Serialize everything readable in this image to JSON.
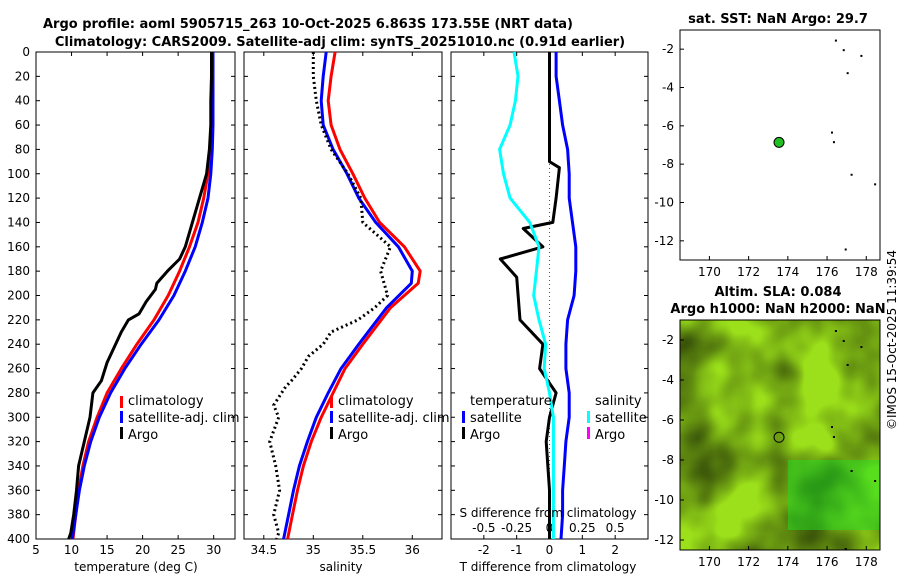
{
  "title_line1": "Argo profile: aoml 5905715_263 10-Oct-2025 6.863S 173.55E (NRT data)",
  "title_line2": "Climatology: CARS2009. Satellite-adj clim: synTS_20251010.nc (0.91d earlier)",
  "watermark": "©IMOS 15-Oct-2025 11:39:54",
  "colors": {
    "climatology": "#ff0000",
    "satellite": "#0000ff",
    "argo": "#000000",
    "sat_salinity": "#00ffff",
    "argo_salinity": "#ff00ff",
    "land": "#000000",
    "marker": "#22c022"
  },
  "depth_ticks": [
    "0",
    "20",
    "40",
    "60",
    "80",
    "100",
    "120",
    "140",
    "160",
    "180",
    "200",
    "220",
    "240",
    "260",
    "280",
    "300",
    "320",
    "340",
    "360",
    "380",
    "400"
  ],
  "chart_data": [
    {
      "type": "line",
      "name": "temperature",
      "xlabel": "temperature (deg C)",
      "xlim": [
        5,
        33
      ],
      "ylim": [
        0,
        400
      ],
      "xticks": [
        "5",
        "10",
        "15",
        "20",
        "25",
        "30"
      ],
      "legend": [
        "climatology",
        "satellite-adj. clim",
        "Argo"
      ],
      "series": [
        {
          "name": "climatology",
          "color": "red",
          "x": [
            29.8,
            29.8,
            29.7,
            29.7,
            29.5,
            29.2,
            28.6,
            27.8,
            26.6,
            25.2,
            23.6,
            21.6,
            19.2,
            17.0,
            15.0,
            13.6,
            12.4,
            11.6,
            11.0,
            10.6,
            10.2
          ],
          "y": [
            0,
            20,
            40,
            60,
            80,
            100,
            120,
            140,
            160,
            180,
            200,
            220,
            240,
            260,
            280,
            300,
            320,
            340,
            360,
            380,
            400
          ]
        },
        {
          "name": "satellite-adj. clim",
          "color": "blue",
          "x": [
            29.9,
            29.9,
            29.9,
            29.9,
            29.8,
            29.6,
            29.2,
            28.4,
            27.4,
            26.0,
            24.4,
            22.3,
            19.8,
            17.5,
            15.5,
            13.9,
            12.7,
            11.8,
            11.1,
            10.6,
            10.1
          ],
          "y": [
            0,
            20,
            40,
            60,
            80,
            100,
            120,
            140,
            160,
            180,
            200,
            220,
            240,
            260,
            280,
            300,
            320,
            340,
            360,
            380,
            400
          ]
        },
        {
          "name": "Argo",
          "color": "black",
          "x": [
            29.7,
            29.7,
            29.6,
            29.6,
            29.4,
            29.0,
            28.0,
            27.0,
            26.0,
            25.2,
            23.5,
            22.0,
            21.8,
            20.5,
            19.5,
            18.0,
            17.0,
            16.2,
            15.0,
            14.2,
            13.0,
            12.6,
            11.8,
            11.0,
            10.7,
            10.3,
            9.9,
            9.6
          ],
          "y": [
            0,
            20,
            40,
            60,
            80,
            100,
            120,
            140,
            160,
            170,
            180,
            190,
            195,
            205,
            215,
            220,
            230,
            240,
            255,
            270,
            280,
            300,
            320,
            340,
            360,
            380,
            395,
            400
          ]
        }
      ]
    },
    {
      "type": "line",
      "name": "salinity",
      "xlabel": "salinity",
      "xlim": [
        34.3,
        36.3
      ],
      "ylim": [
        0,
        400
      ],
      "xticks": [
        "34.5",
        "35",
        "35.5",
        "36"
      ],
      "legend": [
        "climatology",
        "satellite-adj. clim",
        "Argo"
      ],
      "series": [
        {
          "name": "climatology",
          "color": "red",
          "x": [
            35.22,
            35.18,
            35.15,
            35.18,
            35.27,
            35.4,
            35.52,
            35.67,
            35.92,
            36.08,
            36.06,
            35.78,
            35.5,
            35.32,
            35.2,
            35.08,
            34.98,
            34.9,
            34.84,
            34.79,
            34.74
          ],
          "y": [
            0,
            20,
            40,
            60,
            80,
            100,
            120,
            140,
            160,
            180,
            190,
            210,
            240,
            260,
            280,
            300,
            320,
            340,
            360,
            380,
            400
          ]
        },
        {
          "name": "satellite-adj. clim",
          "color": "blue",
          "x": [
            35.13,
            35.1,
            35.08,
            35.1,
            35.2,
            35.34,
            35.46,
            35.63,
            35.86,
            36.0,
            35.99,
            35.74,
            35.46,
            35.28,
            35.15,
            35.03,
            34.94,
            34.86,
            34.8,
            34.75,
            34.7
          ],
          "y": [
            0,
            20,
            40,
            60,
            80,
            100,
            120,
            140,
            160,
            180,
            190,
            210,
            240,
            260,
            280,
            300,
            320,
            340,
            360,
            380,
            400
          ]
        },
        {
          "name": "Argo",
          "color": "black",
          "x": [
            35.0,
            35.0,
            35.03,
            35.08,
            35.18,
            35.35,
            35.48,
            35.5,
            35.78,
            35.68,
            35.75,
            35.62,
            35.45,
            35.18,
            35.1,
            34.95,
            34.88,
            34.78,
            34.72,
            34.68,
            34.6,
            34.65,
            34.56,
            34.62,
            34.66,
            34.6,
            34.65,
            34.63
          ],
          "y": [
            0,
            20,
            40,
            60,
            80,
            100,
            120,
            140,
            160,
            180,
            200,
            210,
            220,
            230,
            240,
            250,
            260,
            270,
            275,
            280,
            290,
            300,
            320,
            340,
            360,
            380,
            395,
            400
          ]
        }
      ]
    },
    {
      "type": "line",
      "name": "difference",
      "xlabel": "T difference from climatology",
      "x2label": "S difference from climatology",
      "xlim": [
        -3,
        3
      ],
      "x2lim": [
        -0.75,
        0.75
      ],
      "ylim": [
        0,
        400
      ],
      "xticks": [
        "-2",
        "-1",
        "0",
        "1",
        "2"
      ],
      "x2ticks": [
        "-0.5",
        "-0.25",
        "0",
        "0.25",
        "0.5"
      ],
      "legend_groups": [
        "temperature",
        "salinity"
      ],
      "legend": [
        "satellite",
        "Argo",
        "satellite",
        "Argo"
      ],
      "series": [
        {
          "name": "temperature satellite",
          "color": "blue",
          "x": [
            0.2,
            0.2,
            0.3,
            0.4,
            0.55,
            0.6,
            0.6,
            0.7,
            0.8,
            0.8,
            0.75,
            0.55,
            0.5,
            0.5,
            0.6,
            0.6,
            0.5,
            0.45,
            0.4,
            0.4,
            0.35
          ],
          "y": [
            0,
            20,
            40,
            60,
            80,
            100,
            120,
            140,
            160,
            180,
            200,
            220,
            240,
            260,
            280,
            300,
            320,
            340,
            360,
            380,
            400
          ]
        },
        {
          "name": "temperature Argo",
          "color": "black",
          "x": [
            0,
            0,
            0,
            0,
            0.3,
            0.2,
            0.1,
            -0.8,
            -0.2,
            -1.5,
            -1.0,
            -0.9,
            -0.2,
            -0.3,
            0.2,
            0.0,
            -0.1,
            0.0,
            0.0,
            0.0
          ],
          "y": [
            0,
            40,
            80,
            90,
            95,
            120,
            140,
            145,
            160,
            170,
            185,
            220,
            240,
            260,
            280,
            300,
            320,
            360,
            380,
            400
          ]
        },
        {
          "name": "salinity satellite",
          "color": "cyan",
          "x": [
            -0.27,
            -0.24,
            -0.26,
            -0.3,
            -0.38,
            -0.35,
            -0.3,
            -0.15,
            -0.08,
            -0.1,
            -0.12,
            -0.08,
            -0.03,
            -0.04,
            0.0,
            0.03,
            0.03,
            0.03,
            0.03,
            0.03
          ],
          "y": [
            0,
            20,
            40,
            60,
            80,
            100,
            120,
            140,
            160,
            180,
            200,
            220,
            240,
            260,
            280,
            300,
            320,
            360,
            380,
            400
          ]
        }
      ]
    },
    {
      "type": "scatter",
      "name": "sat_sst_map",
      "title": "sat. SST: NaN Argo: 29.7",
      "xlim": [
        168.5,
        178.7
      ],
      "ylim": [
        -13,
        -1
      ],
      "xticks": [
        "170",
        "172",
        "174",
        "176",
        "178"
      ],
      "yticks": [
        "-2",
        "-4",
        "-6",
        "-8",
        "-10",
        "-12"
      ],
      "profile_lon": 173.55,
      "profile_lat": -6.863
    },
    {
      "type": "heatmap",
      "name": "sla_map",
      "title1": "Altim. SLA: 0.084",
      "title2": "Argo h1000: NaN h2000: NaN",
      "xlim": [
        168.5,
        178.7
      ],
      "ylim": [
        -12.5,
        -1
      ],
      "xticks": [
        "170",
        "172",
        "174",
        "176",
        "178"
      ],
      "yticks": [
        "-2",
        "-4",
        "-6",
        "-8",
        "-10",
        "-12"
      ],
      "profile_lon": 173.55,
      "profile_lat": -6.863
    }
  ]
}
